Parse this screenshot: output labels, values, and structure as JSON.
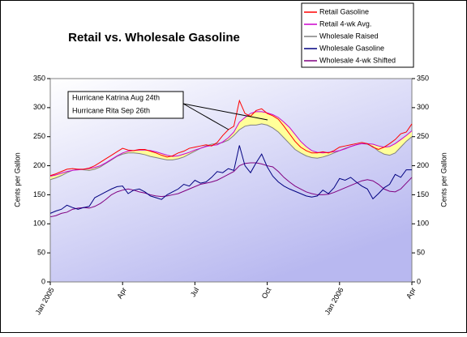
{
  "chart_data": {
    "type": "line",
    "title": "Retail vs. Wholesale Gasoline",
    "y_label": "Cents per Gallon",
    "y2_label": "Cents per Gallon",
    "annotations": [
      "Hurricane Katrina Aug 24th",
      "Hurricane Rita Sep 26th"
    ],
    "categories": [
      "Jan 2005",
      null,
      null,
      null,
      null,
      null,
      null,
      null,
      null,
      null,
      null,
      null,
      null,
      "Apr",
      null,
      null,
      null,
      null,
      null,
      null,
      null,
      null,
      null,
      null,
      null,
      null,
      "Jul",
      null,
      null,
      null,
      null,
      null,
      null,
      null,
      null,
      null,
      null,
      null,
      null,
      "Oct",
      null,
      null,
      null,
      null,
      null,
      null,
      null,
      null,
      null,
      null,
      null,
      null,
      "Jan 2006",
      null,
      null,
      null,
      null,
      null,
      null,
      null,
      null,
      null,
      null,
      null,
      null,
      "Apr"
    ],
    "ylim": [
      0,
      350
    ],
    "yticks": [
      0,
      50,
      100,
      150,
      200,
      250,
      300,
      350
    ],
    "y2lim": [
      0,
      350
    ],
    "y2ticks": [
      0,
      50,
      100,
      150,
      200,
      250,
      300,
      350
    ],
    "fill_color": "#ffff99",
    "series": [
      {
        "name": "Retail Gasoline",
        "color": "#ff0000",
        "values": [
          183,
          186,
          190,
          194,
          195,
          194,
          194,
          196,
          200,
          206,
          212,
          218,
          224,
          230,
          227,
          226,
          228,
          228,
          225,
          222,
          218,
          215,
          217,
          222,
          225,
          230,
          232,
          234,
          236,
          234,
          240,
          252,
          262,
          268,
          312,
          290,
          285,
          295,
          298,
          290,
          286,
          280,
          268,
          255,
          242,
          232,
          226,
          222,
          222,
          224,
          222,
          226,
          232,
          234,
          236,
          238,
          240,
          238,
          232,
          228,
          232,
          238,
          245,
          255,
          258,
          272
        ]
      },
      {
        "name": "Retail 4-wk Avg.",
        "color": "#cc00cc",
        "values": [
          182,
          184,
          187,
          190,
          192,
          193,
          194,
          195,
          197,
          200,
          205,
          211,
          217,
          222,
          225,
          226,
          227,
          227,
          226,
          224,
          221,
          218,
          216,
          217,
          220,
          223,
          227,
          230,
          233,
          235,
          236,
          241,
          248,
          258,
          275,
          283,
          290,
          293,
          293,
          291,
          288,
          283,
          275,
          266,
          254,
          242,
          233,
          226,
          223,
          222,
          223,
          224,
          226,
          229,
          233,
          236,
          238,
          238,
          237,
          234,
          232,
          233,
          238,
          245,
          252,
          260
        ]
      },
      {
        "name": "Wholesale Raised",
        "color": "#808080",
        "values": [
          176,
          179,
          183,
          188,
          192,
          194,
          193,
          192,
          194,
          198,
          204,
          210,
          216,
          220,
          222,
          222,
          221,
          219,
          216,
          214,
          212,
          210,
          210,
          212,
          215,
          220,
          225,
          230,
          234,
          237,
          238,
          240,
          244,
          252,
          262,
          268,
          270,
          270,
          272,
          270,
          265,
          258,
          248,
          238,
          228,
          222,
          217,
          214,
          213,
          215,
          218,
          222,
          226,
          230,
          233,
          236,
          238,
          237,
          233,
          225,
          220,
          218,
          222,
          232,
          242,
          250
        ]
      },
      {
        "name": "Wholesale Gasoline",
        "color": "#000080",
        "values": [
          118,
          122,
          125,
          132,
          128,
          125,
          128,
          130,
          145,
          150,
          155,
          160,
          164,
          165,
          152,
          158,
          160,
          155,
          148,
          145,
          142,
          150,
          155,
          160,
          168,
          165,
          175,
          170,
          172,
          180,
          190,
          188,
          195,
          192,
          235,
          200,
          188,
          205,
          220,
          198,
          182,
          172,
          165,
          160,
          156,
          152,
          148,
          146,
          148,
          158,
          152,
          162,
          178,
          175,
          180,
          172,
          165,
          160,
          143,
          152,
          162,
          168,
          185,
          180,
          193,
          193
        ]
      },
      {
        "name": "Wholesale 4-wk Shifted",
        "color": "#800080",
        "values": [
          112,
          114,
          118,
          120,
          125,
          127,
          128,
          127,
          130,
          135,
          142,
          150,
          155,
          158,
          160,
          158,
          155,
          153,
          150,
          148,
          147,
          148,
          150,
          152,
          156,
          160,
          164,
          168,
          170,
          172,
          175,
          180,
          185,
          190,
          200,
          204,
          205,
          205,
          203,
          200,
          198,
          190,
          180,
          172,
          165,
          160,
          155,
          152,
          150,
          150,
          151,
          154,
          158,
          162,
          166,
          170,
          174,
          176,
          174,
          168,
          160,
          156,
          155,
          160,
          170,
          180
        ]
      }
    ]
  }
}
